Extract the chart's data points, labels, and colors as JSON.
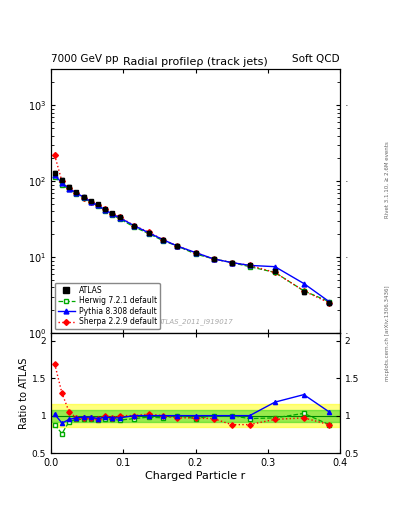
{
  "title": "Radial profileρ (track jets)",
  "top_left_label": "7000 GeV pp",
  "top_right_label": "Soft QCD",
  "right_label_top": "Rivet 3.1.10, ≥ 2.6M events",
  "right_label_bot": "mcplots.cern.ch [arXiv:1306.3436]",
  "watermark": "ATLAS_2011_I919017",
  "xlabel": "Charged Particle r",
  "ylabel_bot": "Ratio to ATLAS",
  "x_data": [
    0.005,
    0.015,
    0.025,
    0.035,
    0.045,
    0.055,
    0.065,
    0.075,
    0.085,
    0.095,
    0.115,
    0.135,
    0.155,
    0.175,
    0.2,
    0.225,
    0.25,
    0.275,
    0.31,
    0.35,
    0.385
  ],
  "atlas_y": [
    130,
    105,
    85,
    72,
    63,
    55,
    50,
    43,
    38,
    34,
    26,
    21,
    17,
    14,
    11.5,
    9.5,
    8.5,
    7.8,
    6.5,
    3.5,
    2.5
  ],
  "atlas_yerr": [
    8,
    5,
    4,
    3,
    2.5,
    2,
    2,
    2,
    1.5,
    1.5,
    1,
    0.8,
    0.7,
    0.6,
    0.5,
    0.4,
    0.4,
    0.4,
    0.3,
    0.2,
    0.15
  ],
  "herwig_y": [
    115,
    90,
    78,
    68,
    60,
    53,
    47,
    41,
    36,
    32,
    25,
    20.5,
    16.5,
    14,
    11,
    9.5,
    8.5,
    7.5,
    6.3,
    3.6,
    2.6
  ],
  "pythia_y": [
    120,
    95,
    80,
    70,
    62,
    54,
    48,
    42,
    37,
    33,
    26,
    21,
    17,
    14,
    11.5,
    9.5,
    8.5,
    7.8,
    7.5,
    4.5,
    2.6
  ],
  "sherpa_y": [
    220,
    100,
    82,
    70,
    61,
    54,
    48,
    43,
    37,
    34,
    26,
    21.5,
    17,
    14,
    11.5,
    9.5,
    8.5,
    7.8,
    6.3,
    3.6,
    2.5
  ],
  "herwig_ratio": [
    0.88,
    0.76,
    0.92,
    0.95,
    0.95,
    0.96,
    0.94,
    0.95,
    0.95,
    0.94,
    0.96,
    0.98,
    0.97,
    1.0,
    0.96,
    1.0,
    1.0,
    0.96,
    0.97,
    1.03,
    0.88
  ],
  "pythia_ratio": [
    1.02,
    0.9,
    0.95,
    0.97,
    0.98,
    0.98,
    0.96,
    0.98,
    0.97,
    0.97,
    1.0,
    1.0,
    1.0,
    1.0,
    1.0,
    1.0,
    1.0,
    1.0,
    1.18,
    1.28,
    1.05
  ],
  "sherpa_ratio": [
    1.69,
    1.3,
    1.05,
    0.97,
    0.97,
    0.97,
    0.96,
    1.0,
    0.97,
    1.0,
    1.0,
    1.02,
    1.0,
    0.97,
    0.97,
    0.96,
    0.88,
    0.88,
    0.95,
    0.97,
    0.88
  ],
  "atlas_color": "#000000",
  "herwig_color": "#00aa00",
  "pythia_color": "#0000ff",
  "sherpa_color": "#ff0000",
  "band_yellow_color": "#ffff00",
  "band_green_color": "#00cc00",
  "band_yellow_alpha": 0.5,
  "band_green_alpha": 0.4
}
